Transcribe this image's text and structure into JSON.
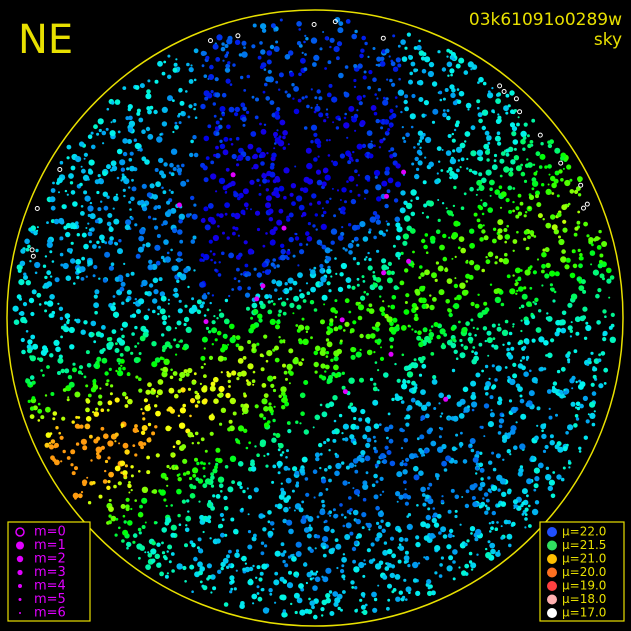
{
  "header": {
    "direction": "NE",
    "frame_id": "03k61091o0289w",
    "frame_type": "sky"
  },
  "magnitude_legend": [
    "m=0",
    "m=1",
    "m=2",
    "m=3",
    "m=4",
    "m=5",
    "m=6"
  ],
  "brightness_legend": [
    "μ=22.0",
    "μ=21.5",
    "μ=21.0",
    "μ=20.0",
    "μ=19.0",
    "μ=18.0",
    "μ=17.0"
  ]
}
